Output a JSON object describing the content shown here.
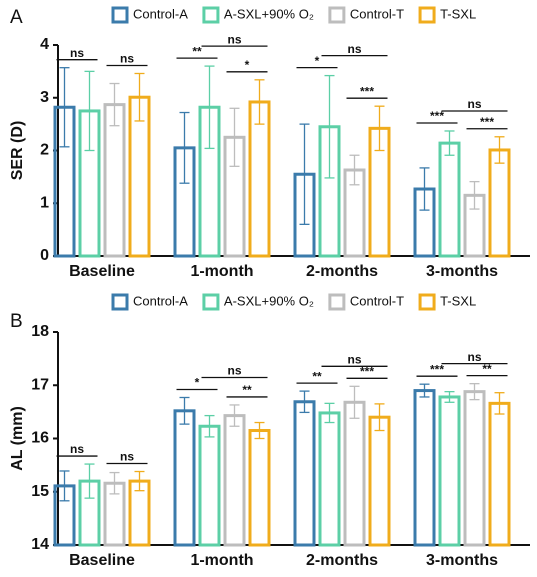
{
  "chart_data": [
    {
      "label": "A",
      "type": "bar",
      "ylabel": "SER (D)",
      "categories": [
        "Baseline",
        "1-month",
        "2-months",
        "3-months"
      ],
      "series": [
        {
          "name": "Control-A",
          "color": "#3b7bab",
          "values": [
            2.82,
            2.05,
            1.55,
            1.27
          ],
          "errors": [
            0.75,
            0.67,
            0.95,
            0.4
          ]
        },
        {
          "name": "A-SXL+90% O₂",
          "color": "#5ccfa6",
          "values": [
            2.75,
            2.82,
            2.45,
            2.14
          ],
          "errors": [
            0.75,
            0.78,
            0.97,
            0.23
          ]
        },
        {
          "name": "Control-T",
          "color": "#bdbdbd",
          "values": [
            2.87,
            2.25,
            1.63,
            1.15
          ],
          "errors": [
            0.4,
            0.55,
            0.28,
            0.26
          ]
        },
        {
          "name": "T-SXL",
          "color": "#f0ac1c",
          "values": [
            3.01,
            2.92,
            2.42,
            2.01
          ],
          "errors": [
            0.45,
            0.42,
            0.42,
            0.25
          ]
        }
      ],
      "ylim": [
        0,
        4
      ],
      "yticks": [
        0,
        1,
        2,
        3,
        4
      ],
      "annotations": [
        {
          "text": "ns",
          "category": "Baseline",
          "between": [
            "Control-A",
            "A-SXL+90% O₂"
          ]
        },
        {
          "text": "ns",
          "category": "Baseline",
          "between": [
            "Control-T",
            "T-SXL"
          ]
        },
        {
          "text": "**",
          "category": "1-month",
          "between": [
            "Control-A",
            "A-SXL+90% O₂"
          ]
        },
        {
          "text": "*",
          "category": "1-month",
          "between": [
            "Control-T",
            "T-SXL"
          ]
        },
        {
          "text": "ns",
          "category": "1-month",
          "between": [
            "A-SXL+90% O₂",
            "T-SXL"
          ]
        },
        {
          "text": "*",
          "category": "2-months",
          "between": [
            "Control-A",
            "A-SXL+90% O₂"
          ]
        },
        {
          "text": "***",
          "category": "2-months",
          "between": [
            "Control-T",
            "T-SXL"
          ]
        },
        {
          "text": "ns",
          "category": "2-months",
          "between": [
            "A-SXL+90% O₂",
            "T-SXL"
          ]
        },
        {
          "text": "***",
          "category": "3-months",
          "between": [
            "Control-A",
            "A-SXL+90% O₂"
          ]
        },
        {
          "text": "***",
          "category": "3-months",
          "between": [
            "Control-T",
            "T-SXL"
          ]
        },
        {
          "text": "ns",
          "category": "3-months",
          "between": [
            "A-SXL+90% O₂",
            "T-SXL"
          ]
        }
      ]
    },
    {
      "label": "B",
      "type": "bar",
      "ylabel": "AL (mm)",
      "categories": [
        "Baseline",
        "1-month",
        "2-months",
        "3-months"
      ],
      "series": [
        {
          "name": "Control-A",
          "color": "#3b7bab",
          "values": [
            15.11,
            16.52,
            16.69,
            16.9
          ],
          "errors": [
            0.28,
            0.25,
            0.2,
            0.12
          ]
        },
        {
          "name": "A-SXL+90% O₂",
          "color": "#5ccfa6",
          "values": [
            15.2,
            16.23,
            16.48,
            16.78
          ],
          "errors": [
            0.32,
            0.2,
            0.18,
            0.1
          ]
        },
        {
          "name": "Control-T",
          "color": "#bdbdbd",
          "values": [
            15.16,
            16.43,
            16.68,
            16.88
          ],
          "errors": [
            0.2,
            0.2,
            0.3,
            0.15
          ]
        },
        {
          "name": "T-SXL",
          "color": "#f0ac1c",
          "values": [
            15.2,
            16.15,
            16.4,
            16.66
          ],
          "errors": [
            0.18,
            0.15,
            0.25,
            0.2
          ]
        }
      ],
      "ylim": [
        14,
        18
      ],
      "yticks": [
        14,
        15,
        16,
        17,
        18
      ],
      "annotations": [
        {
          "text": "ns",
          "category": "Baseline",
          "between": [
            "Control-A",
            "A-SXL+90% O₂"
          ]
        },
        {
          "text": "ns",
          "category": "Baseline",
          "between": [
            "Control-T",
            "T-SXL"
          ]
        },
        {
          "text": "*",
          "category": "1-month",
          "between": [
            "Control-A",
            "A-SXL+90% O₂"
          ]
        },
        {
          "text": "**",
          "category": "1-month",
          "between": [
            "Control-T",
            "T-SXL"
          ]
        },
        {
          "text": "ns",
          "category": "1-month",
          "between": [
            "A-SXL+90% O₂",
            "T-SXL"
          ]
        },
        {
          "text": "**",
          "category": "2-months",
          "between": [
            "Control-A",
            "A-SXL+90% O₂"
          ]
        },
        {
          "text": "***",
          "category": "2-months",
          "between": [
            "Control-T",
            "T-SXL"
          ]
        },
        {
          "text": "ns",
          "category": "2-months",
          "between": [
            "A-SXL+90% O₂",
            "T-SXL"
          ]
        },
        {
          "text": "***",
          "category": "3-months",
          "between": [
            "Control-A",
            "A-SXL+90% O₂"
          ]
        },
        {
          "text": "**",
          "category": "3-months",
          "between": [
            "Control-T",
            "T-SXL"
          ]
        },
        {
          "text": "ns",
          "category": "3-months",
          "between": [
            "A-SXL+90% O₂",
            "T-SXL"
          ]
        }
      ]
    }
  ]
}
